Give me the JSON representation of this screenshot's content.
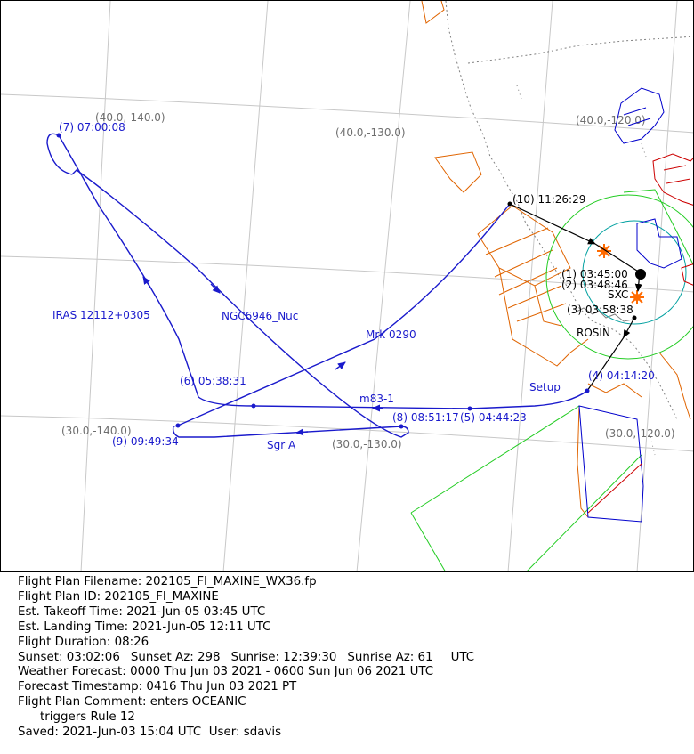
{
  "colors": {
    "track": "#1a1acc",
    "grid": "#c8c8c8",
    "grid_label": "#6e6e6e",
    "coast": "#808080",
    "fir_orange": "#e06400",
    "fir_green": "#22cc22",
    "restricted_red": "#cc0000",
    "restricted_blue": "#0000cc",
    "teal_ring": "#00a0a0",
    "sun_marker": "#ff6a00"
  },
  "grid_labels": {
    "g40_140": "(40.0,-140.0)",
    "g40_130": "(40.0,-130.0)",
    "g40_120": "(40.0,-120.0)",
    "g30_140": "(30.0,-140.0)",
    "g30_130": "(30.0,-130.0)",
    "g30_120": "(30.0,-120.0)"
  },
  "waypoints": [
    {
      "label": "(1) 03:45:00"
    },
    {
      "label": "(2) 03:48:46"
    },
    {
      "label": "(3) 03:58:38"
    },
    {
      "label": "(4) 04:14:20"
    },
    {
      "label": "(5) 04:44:23"
    },
    {
      "label": "(6) 05:38:31"
    },
    {
      "label": "(7) 07:00:08"
    },
    {
      "label": "(8) 08:51:17"
    },
    {
      "label": "(9) 09:49:34"
    },
    {
      "label": "(10) 11:26:29"
    }
  ],
  "leg_targets": {
    "setup": "Setup",
    "m83": "m83-1",
    "iras": "IRAS 12112+0305",
    "ngc": "NGC6946_Nuc",
    "sgra": "Sgr A",
    "mrk": "Mrk 0290"
  },
  "fixes": {
    "sxc": "SXC",
    "rosin": "ROSIN"
  },
  "info": {
    "filename": "Flight Plan Filename: 202105_FI_MAXINE_WX36.fp",
    "plan_id": "Flight Plan ID: 202105_FI_MAXINE",
    "takeoff": "Est. Takeoff Time: 2021-Jun-05 03:45 UTC",
    "landing": "Est. Landing Time: 2021-Jun-05 12:11 UTC",
    "duration": "Flight Duration: 08:26",
    "sunset": "Sunset: 03:02:06",
    "sunset_az": "Sunset Az: 298",
    "sunrise": "Sunrise: 12:39:30",
    "sunrise_az": "Sunrise Az: 61",
    "sun_tz": "UTC",
    "weather": "Weather Forecast: 0000 Thu Jun 03 2021 - 0600 Sun Jun 06 2021 UTC",
    "forecast_ts": "Forecast Timestamp: 0416 Thu Jun 03 2021 PT",
    "comment": "Flight Plan Comment: enters OCEANIC",
    "comment_2": "triggers Rule 12",
    "saved": "Saved: 2021-Jun-03 15:04 UTC  User: sdavis"
  }
}
